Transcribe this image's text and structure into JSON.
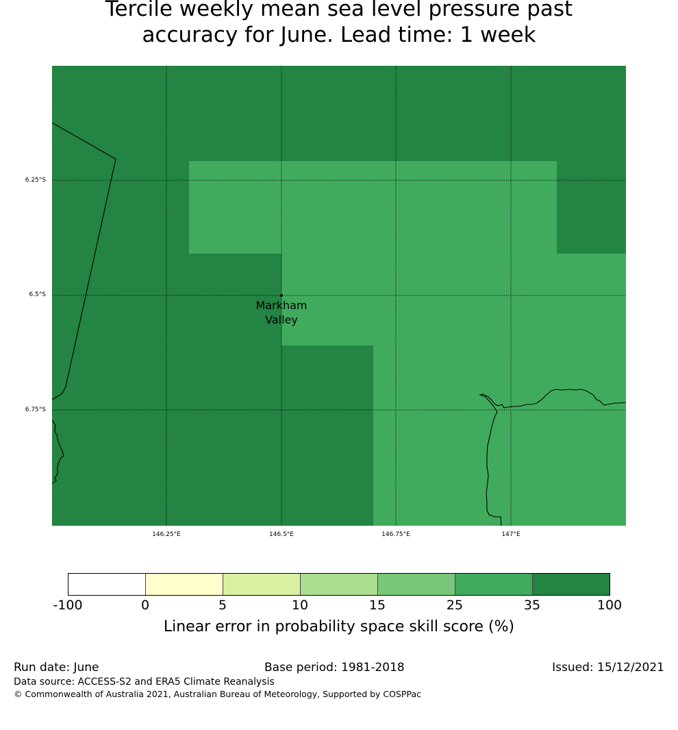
{
  "title": {
    "line1": "Tercile weekly mean sea level pressure past",
    "line2": "accuracy for June. Lead time: 1 week"
  },
  "map": {
    "lat_labels": [
      "6.25°S",
      "6.5°S",
      "6.75°S"
    ],
    "lon_labels": [
      "146.25°E",
      "146.5°E",
      "146.75°E",
      "147°E"
    ],
    "place": {
      "name_line1": "Markham",
      "name_line2": "Valley",
      "lat": -6.5,
      "lon": 146.5
    },
    "colors": {
      "high": "#238443",
      "mid": "#41ab5d"
    }
  },
  "colorbar": {
    "ticks": [
      "-100",
      "0",
      "5",
      "10",
      "15",
      "25",
      "35",
      "100"
    ],
    "colors": [
      "#ffffff",
      "#ffffcc",
      "#d9f0a3",
      "#addd8e",
      "#78c679",
      "#41ab5d",
      "#238443"
    ],
    "label": "Linear error in probability space skill score (%)"
  },
  "footer": {
    "run_date": "Run date: June",
    "base_period": "Base period: 1981-2018",
    "issued": "Issued: 15/12/2021",
    "data_source": "Data source: ACCESS-S2 and ERA5 Climate Reanalysis",
    "copyright": "© Commonwealth of Australia 2021, Australian Bureau of Meteorology, Supported by COSPPac"
  }
}
